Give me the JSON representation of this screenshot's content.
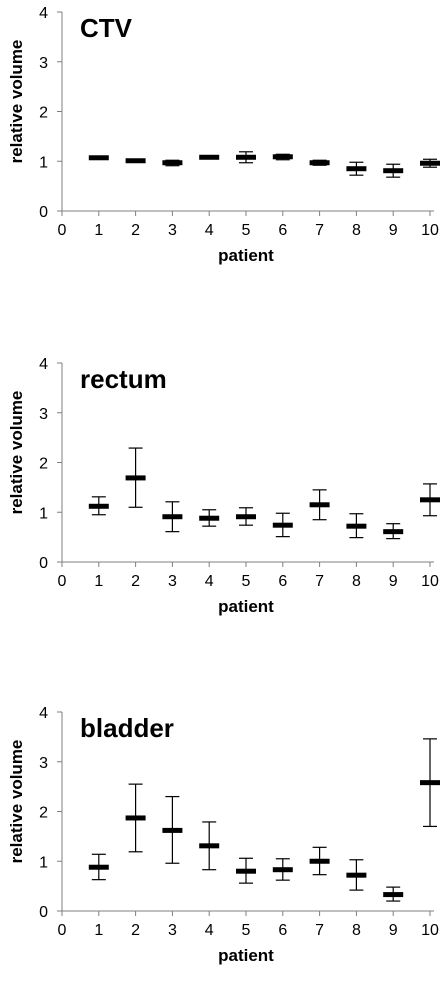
{
  "chart_data": [
    {
      "type": "scatter",
      "title": "CTV",
      "xlabel": "patient",
      "ylabel": "relative volume",
      "xlim": [
        0,
        10
      ],
      "ylim": [
        0,
        4
      ],
      "x_ticks": [
        "0",
        "1",
        "2",
        "3",
        "4",
        "5",
        "6",
        "7",
        "8",
        "9",
        "10"
      ],
      "y_ticks": [
        "0",
        "1",
        "2",
        "3",
        "4"
      ],
      "grid": false,
      "series": [
        {
          "x": [
            1,
            2,
            3,
            4,
            5,
            6,
            7,
            8,
            9,
            10
          ],
          "mean": [
            1.07,
            1.01,
            0.97,
            1.08,
            1.08,
            1.09,
            0.97,
            0.85,
            0.81,
            0.96
          ],
          "low": [
            1.04,
            0.98,
            0.91,
            1.05,
            0.97,
            1.03,
            0.92,
            0.72,
            0.68,
            0.88
          ],
          "high": [
            1.1,
            1.04,
            1.02,
            1.11,
            1.19,
            1.14,
            1.02,
            0.98,
            0.94,
            1.04
          ]
        }
      ]
    },
    {
      "type": "scatter",
      "title": "rectum",
      "xlabel": "patient",
      "ylabel": "relative volume",
      "xlim": [
        0,
        10
      ],
      "ylim": [
        0,
        4
      ],
      "x_ticks": [
        "0",
        "1",
        "2",
        "3",
        "4",
        "5",
        "6",
        "7",
        "8",
        "9",
        "10"
      ],
      "y_ticks": [
        "0",
        "1",
        "2",
        "3",
        "4"
      ],
      "grid": false,
      "series": [
        {
          "x": [
            1,
            2,
            3,
            4,
            5,
            6,
            7,
            8,
            9,
            10
          ],
          "mean": [
            1.12,
            1.69,
            0.91,
            0.88,
            0.91,
            0.74,
            1.15,
            0.72,
            0.61,
            1.25
          ],
          "low": [
            0.95,
            1.1,
            0.61,
            0.72,
            0.74,
            0.51,
            0.85,
            0.49,
            0.47,
            0.93
          ],
          "high": [
            1.31,
            2.29,
            1.21,
            1.05,
            1.09,
            0.98,
            1.45,
            0.97,
            0.77,
            1.57
          ]
        }
      ]
    },
    {
      "type": "scatter",
      "title": "bladder",
      "xlabel": "patient",
      "ylabel": "relative volume",
      "xlim": [
        0,
        10
      ],
      "ylim": [
        0,
        4
      ],
      "x_ticks": [
        "0",
        "1",
        "2",
        "3",
        "4",
        "5",
        "6",
        "7",
        "8",
        "9",
        "10"
      ],
      "y_ticks": [
        "0",
        "1",
        "2",
        "3",
        "4"
      ],
      "grid": false,
      "series": [
        {
          "x": [
            1,
            2,
            3,
            4,
            5,
            6,
            7,
            8,
            9,
            10
          ],
          "mean": [
            0.88,
            1.87,
            1.62,
            1.31,
            0.8,
            0.83,
            1.0,
            0.72,
            0.33,
            2.58
          ],
          "low": [
            0.63,
            1.19,
            0.96,
            0.83,
            0.56,
            0.62,
            0.73,
            0.42,
            0.2,
            1.7
          ],
          "high": [
            1.14,
            2.55,
            2.3,
            1.79,
            1.06,
            1.05,
            1.28,
            1.03,
            0.48,
            3.46
          ]
        }
      ]
    }
  ]
}
